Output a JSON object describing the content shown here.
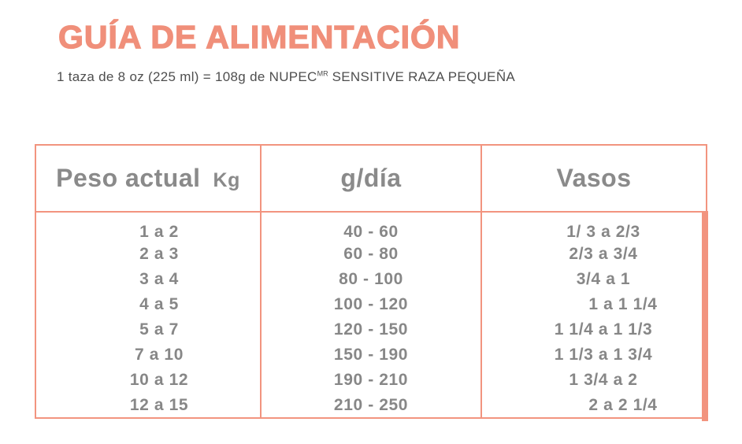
{
  "header": {
    "title": "GUÍA DE ALIMENTACIÓN",
    "subtitle": {
      "prefix": "1 taza de 8 oz (225 ml) = 108g de NUPEC",
      "trademark": "MR",
      "suffix": " SENSITIVE RAZA PEQUEÑA"
    }
  },
  "table": {
    "columns": [
      {
        "label": "Peso actual",
        "unit": "Kg"
      },
      {
        "label": "g/día",
        "unit": ""
      },
      {
        "label": "Vasos",
        "unit": ""
      }
    ]
  },
  "chart_data": {
    "type": "table",
    "title": "GUÍA DE ALIMENTACIÓN",
    "note": "1 taza de 8 oz (225 ml) = 108g de NUPEC MR SENSITIVE RAZA PEQUEÑA",
    "columns": [
      "Peso actual (Kg)",
      "g/día",
      "Vasos"
    ],
    "rows": [
      [
        "1 a 2",
        "40 - 60",
        "1/ 3 a 2/3"
      ],
      [
        "2 a 3",
        "60 - 80",
        "2/3 a 3/4"
      ],
      [
        "3 a 4",
        "80 - 100",
        "3/4 a 1"
      ],
      [
        "4 a 5",
        "100 - 120",
        "1 a 1 1/4"
      ],
      [
        "5 a 7",
        "120 - 150",
        "1 1/4 a 1 1/3"
      ],
      [
        "7 a 10",
        "150 - 190",
        "1 1/3 a 1 3/4"
      ],
      [
        "10 a 12",
        "190 - 210",
        "1 3/4 a 2"
      ],
      [
        "12 a 15",
        "210 - 250",
        "2 a 2 1/4"
      ]
    ]
  },
  "colors": {
    "accent": "#F08F7A",
    "table_border": "#F2947F",
    "header_text": "#8A8A8A",
    "cell_text": "#878787",
    "subtitle_text": "#4E4E4E"
  }
}
